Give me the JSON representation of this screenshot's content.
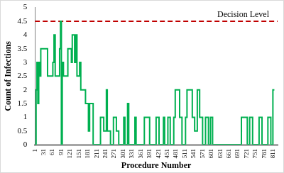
{
  "chart_data": {
    "type": "line",
    "x_label": "Procedure Number",
    "y_label": "Count of Infections",
    "x": [
      1,
      5,
      8,
      11,
      14,
      18,
      21,
      40,
      44,
      58,
      62,
      66,
      70,
      82,
      85,
      88,
      91,
      94,
      98,
      110,
      113,
      122,
      125,
      128,
      133,
      136,
      140,
      144,
      150,
      153,
      157,
      170,
      173,
      180,
      183,
      187,
      196,
      199,
      221,
      224,
      232,
      235,
      241,
      244,
      247,
      255,
      258,
      265,
      268,
      275,
      278,
      283,
      286,
      300,
      303,
      307,
      313,
      316,
      320,
      338,
      341,
      345,
      370,
      373,
      388,
      391,
      410,
      413,
      420,
      423,
      435,
      438,
      442,
      450,
      453,
      458,
      461,
      470,
      473,
      478,
      490,
      493,
      498,
      501,
      510,
      513,
      518,
      533,
      536,
      541,
      544,
      550,
      553,
      558,
      561,
      568,
      571,
      578,
      581,
      588,
      591,
      595,
      598,
      602,
      605,
      700,
      703,
      720,
      723,
      728,
      731,
      738,
      741,
      760,
      763,
      770,
      773,
      790,
      793,
      800,
      803,
      808,
      810,
      815
    ],
    "values": [
      0,
      2,
      3,
      1.5,
      3,
      2.5,
      3.5,
      3.5,
      2.5,
      2.5,
      3,
      4,
      2.5,
      2.5,
      3.5,
      4.5,
      0,
      3,
      2.5,
      2.5,
      3.5,
      3.5,
      3,
      4,
      4,
      3,
      4,
      2.5,
      2.5,
      3,
      2,
      2,
      1.5,
      1.5,
      0.5,
      1.5,
      1.5,
      0,
      0,
      1,
      1,
      0.5,
      0.5,
      2,
      0.5,
      0.5,
      0,
      0,
      1,
      1,
      0.5,
      0.5,
      0,
      0,
      1,
      0,
      0,
      1.5,
      0,
      0,
      1,
      0,
      0,
      1,
      1,
      0,
      0,
      1,
      1,
      0,
      0,
      1,
      0,
      0,
      1,
      1,
      0,
      0,
      1,
      2,
      2,
      1,
      1,
      0,
      0,
      1,
      2,
      2,
      1,
      1,
      0.5,
      0.5,
      2,
      2,
      1,
      1,
      0,
      0,
      1,
      1,
      0,
      0,
      1,
      1,
      0,
      0,
      1,
      1,
      0,
      0,
      1,
      1,
      0,
      0,
      1,
      1,
      0,
      0,
      1,
      1,
      0,
      0,
      2,
      2
    ],
    "color": "#00b050",
    "line_style": "stepped",
    "marker": "none",
    "xlim": [
      1,
      826
    ],
    "xticks": [
      1,
      31,
      61,
      91,
      121,
      151,
      181,
      211,
      241,
      271,
      301,
      331,
      361,
      391,
      421,
      451,
      481,
      511,
      541,
      571,
      601,
      631,
      661,
      691,
      721,
      751,
      781,
      811
    ],
    "ylim": [
      0,
      5
    ],
    "yticks": [
      0,
      0.5,
      1,
      1.5,
      2,
      2.5,
      3,
      3.5,
      4,
      4.5,
      5
    ],
    "grid": false,
    "annotations": [
      {
        "text": "Decision Level",
        "y": 4.5,
        "color": "#c00000",
        "line_style": "dashed"
      }
    ]
  }
}
